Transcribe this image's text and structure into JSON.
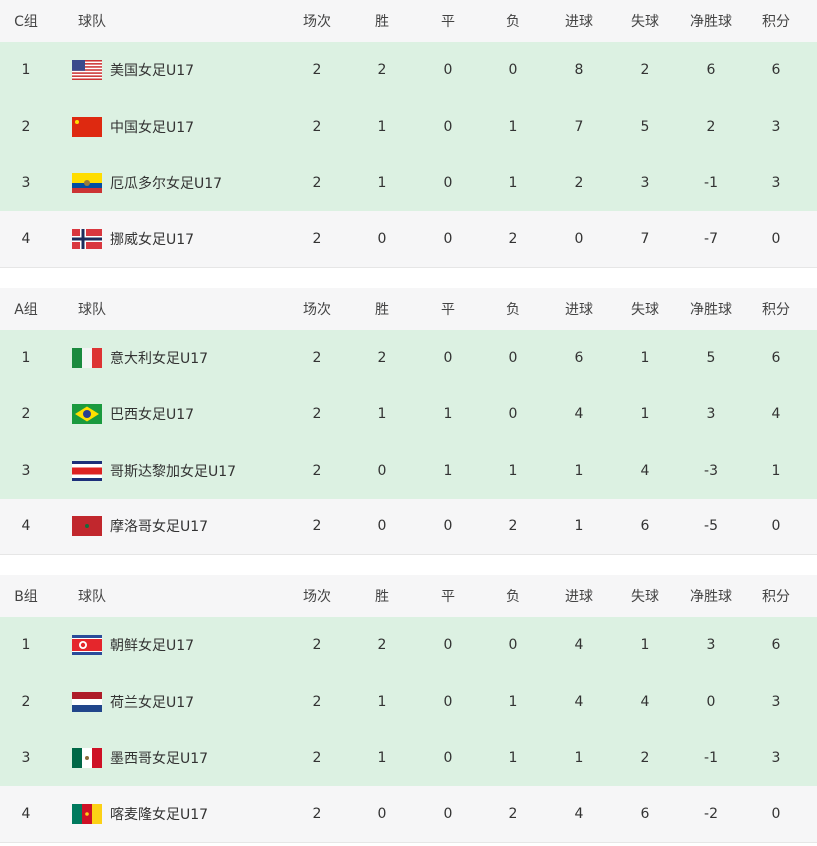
{
  "columns": [
    "球队",
    "场次",
    "胜",
    "平",
    "负",
    "进球",
    "失球",
    "净胜球",
    "积分"
  ],
  "groups": [
    {
      "name": "C组",
      "rows": [
        {
          "rank": "1",
          "flag": "usa-flag",
          "team": "美国女足U17",
          "stats": [
            "2",
            "2",
            "0",
            "0",
            "8",
            "2",
            "6",
            "6"
          ],
          "qualified": true
        },
        {
          "rank": "2",
          "flag": "china-flag",
          "team": "中国女足U17",
          "stats": [
            "2",
            "1",
            "0",
            "1",
            "7",
            "5",
            "2",
            "3"
          ],
          "qualified": true
        },
        {
          "rank": "3",
          "flag": "ecuador-flag",
          "team": "厄瓜多尔女足U17",
          "stats": [
            "2",
            "1",
            "0",
            "1",
            "2",
            "3",
            "-1",
            "3"
          ],
          "qualified": true
        },
        {
          "rank": "4",
          "flag": "norway-flag",
          "team": "挪威女足U17",
          "stats": [
            "2",
            "0",
            "0",
            "2",
            "0",
            "7",
            "-7",
            "0"
          ],
          "qualified": false
        }
      ]
    },
    {
      "name": "A组",
      "rows": [
        {
          "rank": "1",
          "flag": "italy-flag",
          "team": "意大利女足U17",
          "stats": [
            "2",
            "2",
            "0",
            "0",
            "6",
            "1",
            "5",
            "6"
          ],
          "qualified": true
        },
        {
          "rank": "2",
          "flag": "brazil-flag",
          "team": "巴西女足U17",
          "stats": [
            "2",
            "1",
            "1",
            "0",
            "4",
            "1",
            "3",
            "4"
          ],
          "qualified": true
        },
        {
          "rank": "3",
          "flag": "costa-rica-flag",
          "team": "哥斯达黎加女足U17",
          "stats": [
            "2",
            "0",
            "1",
            "1",
            "1",
            "4",
            "-3",
            "1"
          ],
          "qualified": true
        },
        {
          "rank": "4",
          "flag": "morocco-flag",
          "team": "摩洛哥女足U17",
          "stats": [
            "2",
            "0",
            "0",
            "2",
            "1",
            "6",
            "-5",
            "0"
          ],
          "qualified": false
        }
      ]
    },
    {
      "name": "B组",
      "rows": [
        {
          "rank": "1",
          "flag": "north-korea-flag",
          "team": "朝鲜女足U17",
          "stats": [
            "2",
            "2",
            "0",
            "0",
            "4",
            "1",
            "3",
            "6"
          ],
          "qualified": true
        },
        {
          "rank": "2",
          "flag": "netherlands-flag",
          "team": "荷兰女足U17",
          "stats": [
            "2",
            "1",
            "0",
            "1",
            "4",
            "4",
            "0",
            "3"
          ],
          "qualified": true
        },
        {
          "rank": "3",
          "flag": "mexico-flag",
          "team": "墨西哥女足U17",
          "stats": [
            "2",
            "1",
            "0",
            "1",
            "1",
            "2",
            "-1",
            "3"
          ],
          "qualified": true
        },
        {
          "rank": "4",
          "flag": "cameroon-flag",
          "team": "喀麦隆女足U17",
          "stats": [
            "2",
            "0",
            "0",
            "2",
            "4",
            "6",
            "-2",
            "0"
          ],
          "qualified": false
        }
      ]
    }
  ],
  "colors": {
    "qualified_bg": "#dcf1e2",
    "header_bg": "#f6f6f7"
  }
}
